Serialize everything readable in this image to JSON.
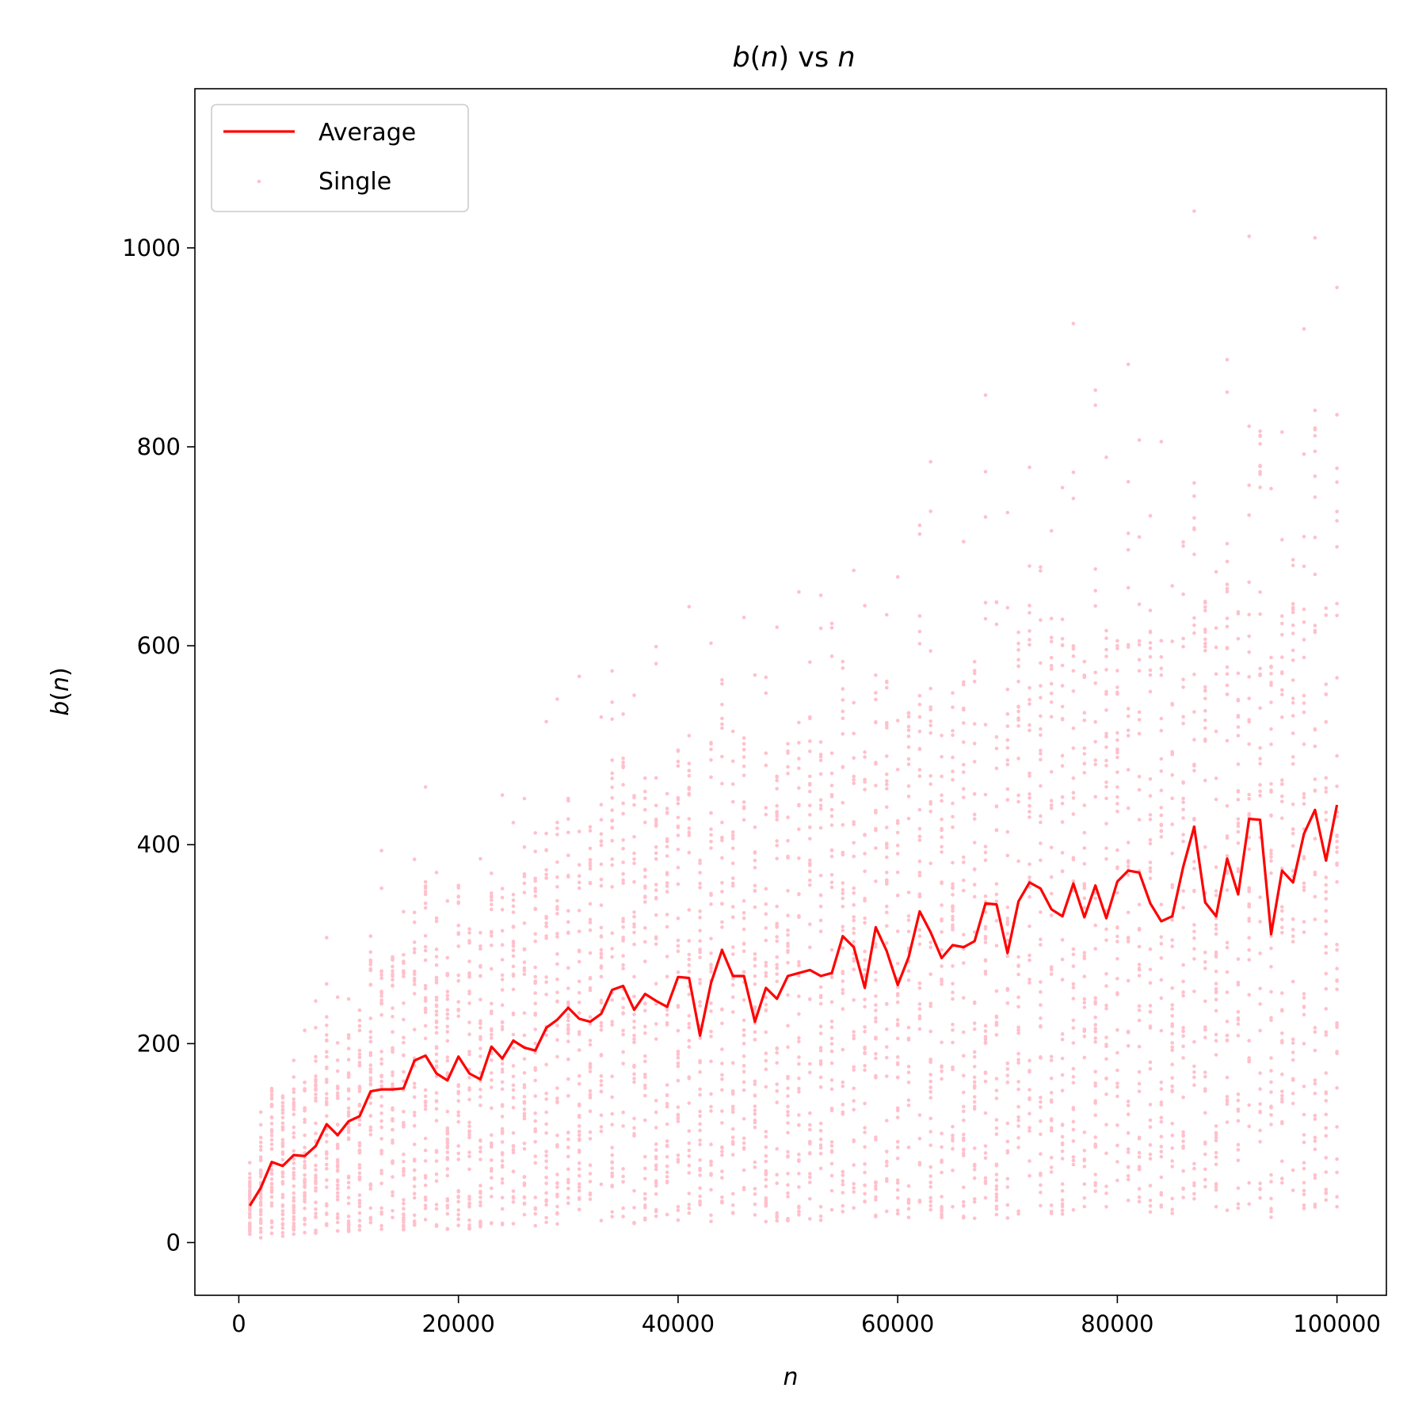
{
  "chart_data": {
    "type": "scatter",
    "title": "b(n) vs n",
    "xlabel": "n",
    "ylabel": "b(n)",
    "xlim": [
      -4000,
      104500
    ],
    "ylim": [
      -53,
      1160
    ],
    "xticks": [
      "0",
      "20000",
      "40000",
      "60000",
      "80000",
      "100000"
    ],
    "yticks": [
      "0",
      "200",
      "400",
      "600",
      "800",
      "1000"
    ],
    "grid": false,
    "legend_position": "upper-left",
    "legend": [
      "Average",
      "Single"
    ],
    "colors": {
      "average": "#ff0000",
      "single": "#ffc0cb"
    },
    "x": [
      1000,
      2000,
      3000,
      4000,
      5000,
      6000,
      7000,
      8000,
      9000,
      10000,
      11000,
      12000,
      13000,
      14000,
      15000,
      16000,
      17000,
      18000,
      19000,
      20000,
      21000,
      22000,
      23000,
      24000,
      25000,
      26000,
      27000,
      28000,
      29000,
      30000,
      31000,
      32000,
      33000,
      34000,
      35000,
      36000,
      37000,
      38000,
      39000,
      40000,
      41000,
      42000,
      43000,
      44000,
      45000,
      46000,
      47000,
      48000,
      49000,
      50000,
      51000,
      52000,
      53000,
      54000,
      55000,
      56000,
      57000,
      58000,
      59000,
      60000,
      61000,
      62000,
      63000,
      64000,
      65000,
      66000,
      67000,
      68000,
      69000,
      70000,
      71000,
      72000,
      73000,
      74000,
      75000,
      76000,
      77000,
      78000,
      79000,
      80000,
      81000,
      82000,
      83000,
      84000,
      85000,
      86000,
      87000,
      88000,
      89000,
      90000,
      91000,
      92000,
      93000,
      94000,
      95000,
      96000,
      97000,
      98000,
      99000,
      100000
    ],
    "series": [
      {
        "name": "Average",
        "type": "line",
        "values": [
          37,
          55,
          81,
          77,
          88,
          87,
          97,
          119,
          108,
          122,
          127,
          152,
          154,
          154,
          155,
          183,
          188,
          170,
          163,
          187,
          170,
          164,
          197,
          185,
          203,
          196,
          193,
          216,
          224,
          236,
          225,
          222,
          230,
          254,
          258,
          234,
          250,
          243,
          237,
          267,
          266,
          208,
          261,
          294,
          268,
          268,
          222,
          256,
          245,
          268,
          271,
          274,
          268,
          271,
          308,
          297,
          256,
          317,
          293,
          259,
          287,
          333,
          312,
          286,
          299,
          297,
          303,
          341,
          340,
          291,
          343,
          362,
          356,
          335,
          328,
          361,
          327,
          359,
          326,
          363,
          374,
          372,
          341,
          323,
          328,
          378,
          418,
          342,
          328,
          386,
          350,
          426,
          425,
          310,
          374,
          362,
          411,
          435,
          384,
          440
        ]
      },
      {
        "name": "Single",
        "type": "scatter",
        "points_per_x": 40,
        "mean": "Average",
        "spread": "dense band around the average widening with n, outliers up to 1110"
      }
    ]
  }
}
